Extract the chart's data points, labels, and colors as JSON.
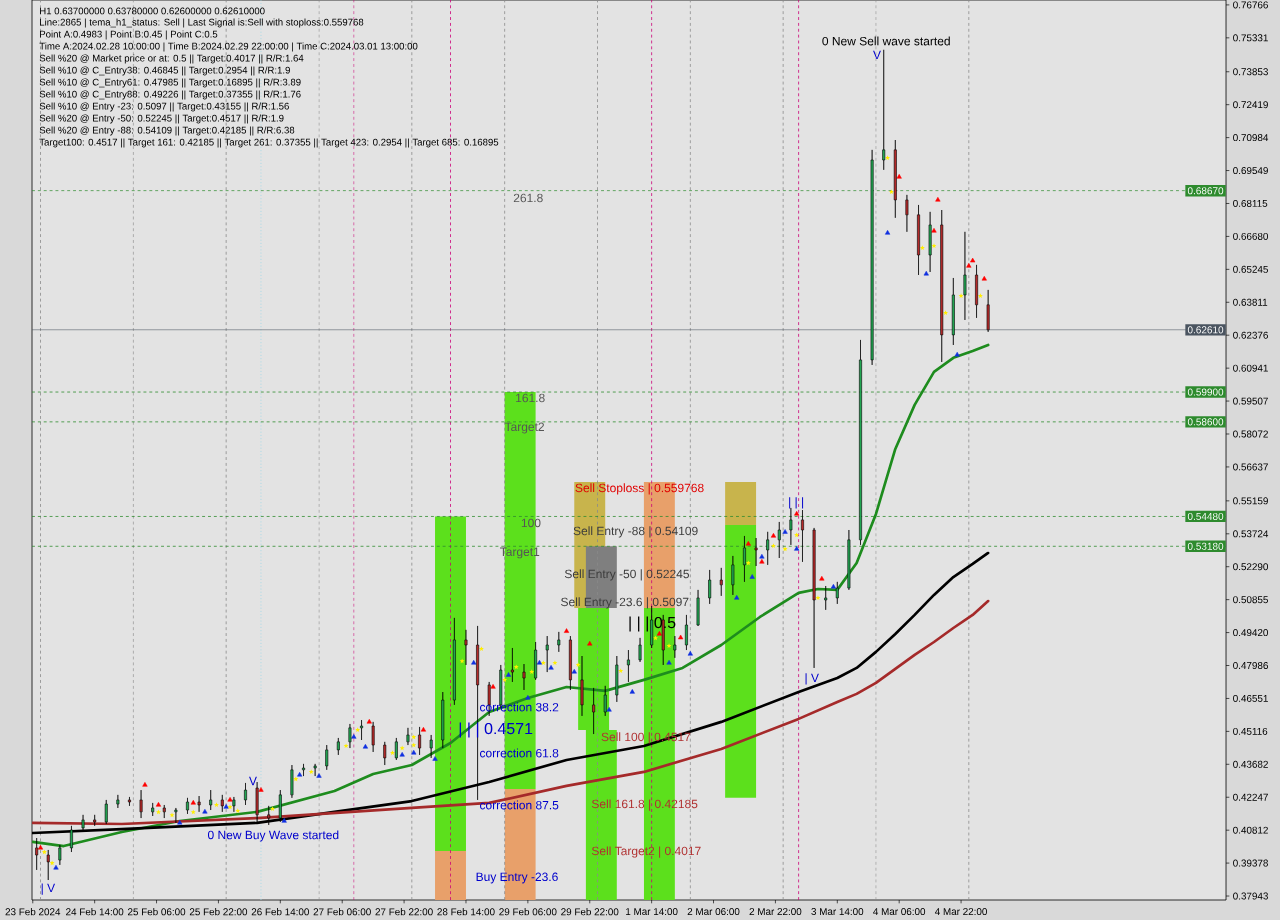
{
  "chart_data": {
    "type": "candlestick",
    "title": "H1 0.63700000 0.63780000 0.62600000 0.62610000",
    "annotations": [
      "Line:2865 | tema_h1_status: Sell | Last Signal is:Sell with stoploss:0.559768",
      "Point A:0.4983 | Point B:0.45 | Point C:0.5",
      "Time A:2024.02.28 10:00:00 | Time B:2024.02.29 22:00:00 | Time C:2024.03.01 13:00:00",
      "Sell %20 @ Market price or at: 0.5 || Target:0.4017 || R/R:1.64",
      "Sell %10 @ C_Entry38: 0.46845 || Target:0.2954 || R/R:1.9",
      "Sell %10 @ C_Entry61: 0.47985 || Target:0.16895 || R/R:3.89",
      "Sell %10 @ C_Entry88: 0.49226 || Target:0.37355 || R/R:1.76",
      "Sell %10 @ Entry -23: 0.5097 || Target:0.43155 || R/R:1.56",
      "Sell %20 @ Entry -50: 0.52245 || Target:0.4517 || R/R:1.9",
      "Sell %20 @ Entry -88: 0.54109 || Target:0.42185 || R/R:6.38",
      "Target100: 0.4517 || Target 161: 0.42185 || Target 261: 0.37355 || Target 423: 0.2954 || Target 685: 0.16895",
      "261.8",
      "161.8",
      "Target2",
      "100",
      "Target1",
      "Sell Stoploss | 0.559768",
      "Sell Entry -88 | 0.54109",
      "Sell Entry -50 | 0.52245",
      "Sell Entry -23.6 | 0.5097",
      "| | | 0.5",
      "| | | 0.4571",
      "correction 38.2",
      "correction 61.8",
      "correction 87.5",
      "Sell 100 | 0.4517",
      "Sell 161.8 | 0.42185",
      "Sell Target2 | 0.4017",
      "Buy Entry -23.6",
      "0 New Buy Wave started",
      "0 New Sell wave started",
      "| V",
      "V",
      "| | |",
      "| V",
      "V"
    ],
    "x": [
      "2024-02-23T23:00",
      "2024-02-24T02:00",
      "2024-02-24T05:00",
      "2024-02-24T08:00",
      "2024-02-24T11:00",
      "2024-02-24T14:00",
      "2024-02-24T17:00",
      "2024-02-24T20:00",
      "2024-02-24T23:00",
      "2024-02-25T02:00",
      "2024-02-25T05:00",
      "2024-02-25T08:00",
      "2024-02-25T11:00",
      "2024-02-25T14:00",
      "2024-02-25T17:00",
      "2024-02-25T20:00",
      "2024-02-25T23:00",
      "2024-02-26T02:00",
      "2024-02-26T05:00",
      "2024-02-26T08:00",
      "2024-02-26T11:00",
      "2024-02-26T14:00",
      "2024-02-26T17:00",
      "2024-02-26T20:00",
      "2024-02-26T23:00",
      "2024-02-27T02:00",
      "2024-02-27T05:00",
      "2024-02-27T08:00",
      "2024-02-27T11:00",
      "2024-02-27T14:00",
      "2024-02-27T17:00",
      "2024-02-27T20:00",
      "2024-02-27T23:00",
      "2024-02-28T02:00",
      "2024-02-28T05:00",
      "2024-02-28T08:00",
      "2024-02-28T11:00",
      "2024-02-28T14:00",
      "2024-02-28T17:00",
      "2024-02-28T20:00",
      "2024-02-28T23:00",
      "2024-02-29T02:00",
      "2024-02-29T05:00",
      "2024-02-29T08:00",
      "2024-02-29T11:00",
      "2024-02-29T14:00",
      "2024-02-29T17:00",
      "2024-02-29T20:00",
      "2024-02-29T23:00",
      "2024-03-01T02:00",
      "2024-03-01T05:00",
      "2024-03-01T08:00",
      "2024-03-01T11:00",
      "2024-03-01T14:00",
      "2024-03-01T17:00",
      "2024-03-01T20:00",
      "2024-03-01T23:00",
      "2024-03-02T02:00",
      "2024-03-02T05:00",
      "2024-03-02T08:00",
      "2024-03-02T11:00",
      "2024-03-02T14:00",
      "2024-03-02T17:00",
      "2024-03-02T20:00",
      "2024-03-02T23:00",
      "2024-03-03T02:00",
      "2024-03-03T05:00",
      "2024-03-03T08:00",
      "2024-03-03T11:00",
      "2024-03-03T14:00",
      "2024-03-03T17:00",
      "2024-03-03T20:00",
      "2024-03-03T23:00",
      "2024-03-04T02:00",
      "2024-03-04T05:00",
      "2024-03-04T08:00",
      "2024-03-04T11:00",
      "2024-03-04T14:00",
      "2024-03-04T17:00",
      "2024-03-04T20:00",
      "2024-03-04T23:00",
      "2024-03-05T02:00",
      "2024-03-05T05:00"
    ],
    "ohlc": [
      [
        0.4004,
        0.4047,
        0.3908,
        0.3973
      ],
      [
        0.3973,
        0.3995,
        0.3864,
        0.3943
      ],
      [
        0.3951,
        0.4017,
        0.393,
        0.4004
      ],
      [
        0.4004,
        0.41,
        0.3986,
        0.4082
      ],
      [
        0.4091,
        0.4148,
        0.4082,
        0.4126
      ],
      [
        0.4126,
        0.4148,
        0.41,
        0.4117
      ],
      [
        0.4117,
        0.4213,
        0.4108,
        0.4195
      ],
      [
        0.4195,
        0.4235,
        0.4178,
        0.4213
      ],
      [
        0.4213,
        0.4226,
        0.4187,
        0.4204
      ],
      [
        0.4213,
        0.4256,
        0.4134,
        0.4161
      ],
      [
        0.4161,
        0.42,
        0.4143,
        0.4178
      ],
      [
        0.4178,
        0.4191,
        0.4134,
        0.4161
      ],
      [
        0.4161,
        0.4178,
        0.4113,
        0.4169
      ],
      [
        0.4169,
        0.4222,
        0.4152,
        0.4204
      ],
      [
        0.4204,
        0.423,
        0.4161,
        0.4191
      ],
      [
        0.4191,
        0.4256,
        0.4169,
        0.4213
      ],
      [
        0.4213,
        0.4235,
        0.4161,
        0.4187
      ],
      [
        0.4187,
        0.4226,
        0.4161,
        0.4213
      ],
      [
        0.4213,
        0.4287,
        0.4191,
        0.4256
      ],
      [
        0.4265,
        0.4291,
        0.4117,
        0.4148
      ],
      [
        0.4148,
        0.4187,
        0.4104,
        0.4134
      ],
      [
        0.4134,
        0.4256,
        0.4117,
        0.4235
      ],
      [
        0.4235,
        0.4365,
        0.4222,
        0.4344
      ],
      [
        0.4344,
        0.437,
        0.4317,
        0.4352
      ],
      [
        0.4352,
        0.437,
        0.4317,
        0.4361
      ],
      [
        0.4361,
        0.4452,
        0.4344,
        0.4431
      ],
      [
        0.4431,
        0.4483,
        0.4409,
        0.4466
      ],
      [
        0.4466,
        0.4544,
        0.4439,
        0.4527
      ],
      [
        0.4527,
        0.4561,
        0.4474,
        0.4535
      ],
      [
        0.4535,
        0.4553,
        0.4422,
        0.4452
      ],
      [
        0.4452,
        0.4466,
        0.4365,
        0.4396
      ],
      [
        0.4396,
        0.4483,
        0.4387,
        0.4466
      ],
      [
        0.4466,
        0.4527,
        0.4452,
        0.4496
      ],
      [
        0.4496,
        0.4531,
        0.4409,
        0.4439
      ],
      [
        0.4439,
        0.4496,
        0.4396,
        0.4474
      ],
      [
        0.4474,
        0.4683,
        0.4439,
        0.4648
      ],
      [
        0.4648,
        0.5006,
        0.4627,
        0.491
      ],
      [
        0.491,
        0.4954,
        0.4801,
        0.4888
      ],
      [
        0.4888,
        0.4971,
        0.4213,
        0.4714
      ],
      [
        0.4714,
        0.4727,
        0.4579,
        0.4627
      ],
      [
        0.4627,
        0.4801,
        0.4614,
        0.4779
      ],
      [
        0.4779,
        0.4875,
        0.4727,
        0.477
      ],
      [
        0.477,
        0.4805,
        0.4692,
        0.4744
      ],
      [
        0.4744,
        0.4901,
        0.4736,
        0.4866
      ],
      [
        0.4866,
        0.4927,
        0.477,
        0.4888
      ],
      [
        0.4888,
        0.4945,
        0.4858,
        0.491
      ],
      [
        0.491,
        0.4927,
        0.4692,
        0.4736
      ],
      [
        0.4736,
        0.484,
        0.4579,
        0.4627
      ],
      [
        0.4627,
        0.4701,
        0.45,
        0.4596
      ],
      [
        0.4596,
        0.471,
        0.4579,
        0.467
      ],
      [
        0.467,
        0.484,
        0.464,
        0.4801
      ],
      [
        0.4801,
        0.4866,
        0.4727,
        0.4823
      ],
      [
        0.4823,
        0.4919,
        0.4814,
        0.4888
      ],
      [
        0.4888,
        0.5058,
        0.4875,
        0.4997
      ],
      [
        0.4997,
        0.5019,
        0.4801,
        0.4866
      ],
      [
        0.4866,
        0.4927,
        0.4832,
        0.4888
      ],
      [
        0.4888,
        0.5019,
        0.4866,
        0.4975
      ],
      [
        0.4975,
        0.5128,
        0.4971,
        0.5093
      ],
      [
        0.5093,
        0.5215,
        0.5067,
        0.5171
      ],
      [
        0.5171,
        0.5224,
        0.5102,
        0.515
      ],
      [
        0.515,
        0.5276,
        0.5106,
        0.5237
      ],
      [
        0.5237,
        0.5363,
        0.5163,
        0.5311
      ],
      [
        0.5311,
        0.5354,
        0.5232,
        0.5302
      ],
      [
        0.5302,
        0.5381,
        0.5237,
        0.5346
      ],
      [
        0.5346,
        0.5424,
        0.5267,
        0.5389
      ],
      [
        0.5389,
        0.5485,
        0.5324,
        0.5433
      ],
      [
        0.5433,
        0.5476,
        0.525,
        0.5389
      ],
      [
        0.5389,
        0.5398,
        0.4788,
        0.5084
      ],
      [
        0.5084,
        0.5145,
        0.5041,
        0.5093
      ],
      [
        0.5093,
        0.5163,
        0.5067,
        0.5136
      ],
      [
        0.5136,
        0.5389,
        0.5128,
        0.5346
      ],
      [
        0.5346,
        0.6217,
        0.5324,
        0.613
      ],
      [
        0.613,
        0.7045,
        0.6108,
        0.7001
      ],
      [
        0.7001,
        0.7481,
        0.6958,
        0.7045
      ],
      [
        0.7045,
        0.7088,
        0.6749,
        0.6827
      ],
      [
        0.6827,
        0.6849,
        0.6688,
        0.6762
      ],
      [
        0.6762,
        0.6805,
        0.65,
        0.6587
      ],
      [
        0.6587,
        0.6775,
        0.6513,
        0.6718
      ],
      [
        0.6718,
        0.6783,
        0.6121,
        0.6239
      ],
      [
        0.6239,
        0.6487,
        0.6195,
        0.6413
      ],
      [
        0.6413,
        0.6688,
        0.6304,
        0.65
      ],
      [
        0.65,
        0.6544,
        0.6313,
        0.637
      ],
      [
        0.637,
        0.6435,
        0.6252,
        0.6261
      ]
    ],
    "colors": [
      "#b52a2a",
      "#b52a2a",
      "#22a652",
      "#22a652",
      "#22a652",
      "#b52a2a",
      "#22a652",
      "#22a652",
      "#b52a2a",
      "#b52a2a",
      "#22a652",
      "#b52a2a",
      "#22a652",
      "#22a652",
      "#b52a2a",
      "#22a652",
      "#b52a2a",
      "#22a652",
      "#22a652",
      "#b52a2a",
      "#b52a2a",
      "#22a652",
      "#22a652",
      "#22a652",
      "#22a652",
      "#22a652",
      "#22a652",
      "#22a652",
      "#22a652",
      "#b52a2a",
      "#b52a2a",
      "#22a652",
      "#22a652",
      "#b52a2a",
      "#22a652",
      "#22a652",
      "#22a652",
      "#b52a2a",
      "#b52a2a",
      "#b52a2a",
      "#22a652",
      "#b52a2a",
      "#b52a2a",
      "#22a652",
      "#22a652",
      "#22a652",
      "#b52a2a",
      "#b52a2a",
      "#b52a2a",
      "#22a652",
      "#22a652",
      "#22a652",
      "#22a652",
      "#22a652",
      "#b52a2a",
      "#22a652",
      "#22a652",
      "#22a652",
      "#22a652",
      "#b52a2a",
      "#22a652",
      "#22a652",
      "#b52a2a",
      "#22a652",
      "#22a652",
      "#22a652",
      "#b52a2a",
      "#b52a2a",
      "#22a652",
      "#22a652",
      "#22a652",
      "#22a652",
      "#22a652",
      "#22a652",
      "#b52a2a",
      "#b52a2a",
      "#b52a2a",
      "#22a652",
      "#b52a2a",
      "#22a652",
      "#22a652",
      "#b52a2a",
      "#b52a2a"
    ],
    "series": [
      {
        "type": "bar",
        "color": "#5ce01c",
        "x": [
          "2024-02-28T10:00",
          "2024-02-29T04:00",
          "2024-02-29T23:00",
          "2024-03-01T01:00",
          "2024-03-01T16:00",
          "2024-03-02T13:00"
        ],
        "base": [
          0.3991,
          0.4261,
          0.4518,
          0.3777,
          0.3777,
          0.4222
        ],
        "values": [
          0.1457,
          0.1729,
          0.0531,
          0.0741,
          0.1272,
          0.1189
        ]
      },
      {
        "type": "bar",
        "color": "#e8a06a",
        "x": [
          "2024-02-28T10:00",
          "2024-02-29T04:00",
          "2024-03-01T16:00"
        ],
        "base": [
          0.3777,
          0.3777,
          0.5049
        ],
        "values": [
          0.0214,
          0.0484,
          0.0549
        ]
      },
      {
        "type": "bar",
        "color": "#c8b44c",
        "x": [
          "2024-02-29T22:00",
          "2024-03-02T13:00"
        ],
        "base": [
          0.5049,
          0.5411
        ],
        "values": [
          0.0549,
          0.0187
        ]
      },
      {
        "type": "bar",
        "color": "#7f7f7f",
        "x": [
          "2024-03-01T01:00"
        ],
        "base": [
          0.5049
        ],
        "values": [
          0.0269
        ]
      },
      {
        "type": "line",
        "color": "#1e8c1e",
        "x": [
          "2024-02-23T22:00",
          "2024-02-24T06:00",
          "2024-02-24T21:00",
          "2024-02-25T12:00",
          "2024-02-26T08:00",
          "2024-02-27T04:00",
          "2024-02-27T14:00",
          "2024-02-28T00:00",
          "2024-02-28T10:00",
          "2024-02-28T20:00",
          "2024-02-29T06:00",
          "2024-02-29T16:00",
          "2024-03-01T02:00",
          "2024-03-01T12:00",
          "2024-03-01T22:00",
          "2024-03-02T08:00",
          "2024-03-02T18:00",
          "2024-03-03T04:00",
          "2024-03-03T09:00",
          "2024-03-03T14:00",
          "2024-03-03T19:00",
          "2024-03-04T00:00",
          "2024-03-04T05:00",
          "2024-03-04T10:00",
          "2024-03-04T15:00",
          "2024-03-04T20:00",
          "2024-03-05T01:00",
          "2024-03-05T05:00"
        ],
        "values": [
          0.403,
          0.4012,
          0.4073,
          0.4121,
          0.4161,
          0.4252,
          0.4326,
          0.4365,
          0.4461,
          0.4596,
          0.4657,
          0.4705,
          0.4688,
          0.4736,
          0.4788,
          0.4888,
          0.501,
          0.5115,
          0.5132,
          0.5128,
          0.5245,
          0.5459,
          0.5742,
          0.5934,
          0.6078,
          0.6139,
          0.6169,
          0.6195
        ]
      },
      {
        "type": "line",
        "color": "#000000",
        "x": [
          "2024-02-23T22:00",
          "2024-02-24T21:00",
          "2024-02-26T08:00",
          "2024-02-27T04:00",
          "2024-02-28T00:00",
          "2024-02-28T20:00",
          "2024-02-29T16:00",
          "2024-03-01T12:00",
          "2024-03-02T08:00",
          "2024-03-03T04:00",
          "2024-03-03T14:00",
          "2024-03-03T19:00",
          "2024-03-04T00:00",
          "2024-03-04T05:00",
          "2024-03-04T10:00",
          "2024-03-04T15:00",
          "2024-03-04T20:00",
          "2024-03-05T01:00",
          "2024-03-05T05:00"
        ],
        "values": [
          0.4069,
          0.4086,
          0.4113,
          0.4161,
          0.4208,
          0.4291,
          0.4387,
          0.4448,
          0.4553,
          0.4683,
          0.4744,
          0.4788,
          0.4858,
          0.4936,
          0.5019,
          0.5106,
          0.5184,
          0.5241,
          0.5289
        ]
      },
      {
        "type": "line",
        "color": "#a52a2a",
        "x": [
          "2024-02-23T22:00",
          "2024-02-24T21:00",
          "2024-02-26T08:00",
          "2024-02-27T04:00",
          "2024-02-28T00:00",
          "2024-02-28T20:00",
          "2024-02-29T16:00",
          "2024-03-01T12:00",
          "2024-03-02T08:00",
          "2024-03-03T04:00",
          "2024-03-03T14:00",
          "2024-03-03T19:00",
          "2024-03-04T00:00",
          "2024-03-04T05:00",
          "2024-03-04T10:00",
          "2024-03-04T15:00",
          "2024-03-04T20:00",
          "2024-03-05T01:00",
          "2024-03-05T05:00"
        ],
        "values": [
          0.4113,
          0.4108,
          0.4134,
          0.4156,
          0.4178,
          0.42,
          0.4274,
          0.4335,
          0.4435,
          0.4566,
          0.464,
          0.4675,
          0.4723,
          0.4784,
          0.4845,
          0.4901,
          0.4962,
          0.5019,
          0.508
        ]
      },
      {
        "type": "scatter",
        "color": "#ff0000",
        "marker": "triangle",
        "x": [
          "2024-02-24T00:00",
          "2024-02-25T03:00",
          "2024-02-25T06:30",
          "2024-02-25T15:30",
          "2024-02-26T01:00",
          "2024-02-26T09:00",
          "2024-02-27T13:00",
          "2024-02-28T03:00",
          "2024-02-28T21:00",
          "2024-02-29T16:00",
          "2024-02-29T22:00",
          "2024-03-01T16:00",
          "2024-03-01T21:30",
          "2024-03-02T15:00",
          "2024-03-02T18:30",
          "2024-03-02T21:30",
          "2024-03-03T03:30",
          "2024-03-03T10:00",
          "2024-03-04T06:00",
          "2024-03-04T15:00",
          "2024-03-04T16:00",
          "2024-03-05T00:00",
          "2024-03-05T01:00",
          "2024-03-05T04:00"
        ],
        "values": [
          0.4004,
          0.4278,
          0.4191,
          0.42,
          0.4213,
          0.4256,
          0.4553,
          0.4518,
          0.4705,
          0.4948,
          0.4893,
          0.4936,
          0.492,
          0.5328,
          0.525,
          0.5363,
          0.5459,
          0.5176,
          0.6927,
          0.6692,
          0.6827,
          0.6539,
          0.6562,
          0.6483
        ]
      },
      {
        "type": "scatter",
        "color": "#1030e0",
        "marker": "triangle",
        "x": [
          "2024-02-24T04:00",
          "2024-02-25T12:00",
          "2024-02-25T18:30",
          "2024-02-26T00:00",
          "2024-02-26T15:00",
          "2024-02-26T19:00",
          "2024-02-27T00:00",
          "2024-02-27T09:00",
          "2024-02-27T12:00",
          "2024-02-27T21:30",
          "2024-02-28T00:30",
          "2024-02-28T06:00",
          "2024-02-28T16:00",
          "2024-02-29T01:00",
          "2024-02-29T06:00",
          "2024-02-29T09:00",
          "2024-02-29T12:00",
          "2024-02-29T18:00",
          "2024-03-01T03:00",
          "2024-03-01T09:00",
          "2024-03-01T18:30",
          "2024-03-02T00:00",
          "2024-03-02T12:00",
          "2024-03-02T16:00",
          "2024-03-02T18:30",
          "2024-03-03T00:30",
          "2024-03-03T03:30",
          "2024-03-03T13:00",
          "2024-03-04T03:00",
          "2024-03-04T13:00",
          "2024-03-04T21:00"
        ],
        "values": [
          0.3917,
          0.4113,
          0.4161,
          0.4182,
          0.4121,
          0.4322,
          0.4317,
          0.4487,
          0.4444,
          0.4409,
          0.4418,
          0.4391,
          0.481,
          0.4757,
          0.4657,
          0.481,
          0.4788,
          0.4771,
          0.4605,
          0.4683,
          0.481,
          0.4849,
          0.5093,
          0.5184,
          0.5272,
          0.538,
          0.5306,
          0.5141,
          0.6683,
          0.6505,
          0.6152
        ]
      },
      {
        "type": "scatter",
        "color": "#ffee00",
        "marker": "star",
        "x": [
          "2024-02-24T01:00",
          "2024-02-24T03:00",
          "2024-02-25T06:30",
          "2024-02-25T10:00",
          "2024-02-25T15:30",
          "2024-02-25T21:30",
          "2024-02-26T01:00",
          "2024-02-26T03:00",
          "2024-02-26T12:00",
          "2024-02-26T18:00",
          "2024-02-26T22:00",
          "2024-02-27T07:00",
          "2024-02-27T10:00",
          "2024-02-27T19:00",
          "2024-02-27T21:30",
          "2024-02-28T00:30",
          "2024-02-28T00:30",
          "2024-02-28T13:00",
          "2024-02-28T18:00",
          "2024-02-29T00:00",
          "2024-02-29T03:00",
          "2024-02-29T07:00",
          "2024-02-29T10:00",
          "2024-02-29T13:00",
          "2024-02-29T19:00",
          "2024-03-01T06:00",
          "2024-03-01T15:00",
          "2024-03-01T18:30",
          "2024-03-02T15:00",
          "2024-03-02T21:30",
          "2024-03-03T00:30",
          "2024-03-03T03:30",
          "2024-03-03T09:00",
          "2024-03-04T03:00",
          "2024-03-04T04:00",
          "2024-03-04T12:00",
          "2024-03-04T15:00",
          "2024-03-04T18:00",
          "2024-03-04T22:00",
          "2024-03-05T03:00"
        ],
        "values": [
          0.3986,
          0.3938,
          0.416,
          0.4147,
          0.416,
          0.4191,
          0.4182,
          0.4165,
          0.4174,
          0.4304,
          0.4335,
          0.4448,
          0.4518,
          0.4418,
          0.4439,
          0.4487,
          0.4452,
          0.4818,
          0.4871,
          0.4736,
          0.4792,
          0.4771,
          0.481,
          0.481,
          0.4801,
          0.4775,
          0.4918,
          0.4884,
          0.5245,
          0.532,
          0.5306,
          0.5367,
          0.5093,
          0.701,
          0.6862,
          0.6618,
          0.6627,
          0.6335,
          0.6409,
          0.6409
        ]
      }
    ],
    "xlim": [
      "2024-02-23T21:48",
      "2024-03-07T18:30"
    ],
    "ylim": [
      0.3777,
      0.7698
    ],
    "xticks": [
      {
        "value": "2024-02-23T22:00",
        "label": "23 Feb 2024"
      },
      {
        "value": "2024-02-24T14:00",
        "label": "24 Feb 14:00"
      },
      {
        "value": "2024-02-25T06:00",
        "label": "25 Feb 06:00"
      },
      {
        "value": "2024-02-25T22:00",
        "label": "25 Feb 22:00"
      },
      {
        "value": "2024-02-26T14:00",
        "label": "26 Feb 14:00"
      },
      {
        "value": "2024-02-27T06:00",
        "label": "27 Feb 06:00"
      },
      {
        "value": "2024-02-27T22:00",
        "label": "27 Feb 22:00"
      },
      {
        "value": "2024-02-28T14:00",
        "label": "28 Feb 14:00"
      },
      {
        "value": "2024-02-29T06:00",
        "label": "29 Feb 06:00"
      },
      {
        "value": "2024-02-29T22:00",
        "label": "29 Feb 22:00"
      },
      {
        "value": "2024-03-01T14:00",
        "label": "1 Mar 14:00"
      },
      {
        "value": "2024-03-02T06:00",
        "label": "2 Mar 06:00"
      },
      {
        "value": "2024-03-02T22:00",
        "label": "2 Mar 22:00"
      },
      {
        "value": "2024-03-03T14:00",
        "label": "3 Mar 14:00"
      },
      {
        "value": "2024-03-04T06:00",
        "label": "4 Mar 06:00"
      },
      {
        "value": "2024-03-04T22:00",
        "label": "4 Mar 22:00"
      }
    ],
    "yticks": [
      0.37943,
      0.39378,
      0.40812,
      0.42247,
      0.43682,
      0.45116,
      0.46551,
      0.47986,
      {
        "value": 0.4942,
        "label": "0.49420"
      },
      0.50855,
      {
        "value": 0.5229,
        "label": "0.52290"
      },
      0.53724,
      0.55159,
      0.56637,
      0.58072,
      0.59507,
      0.60941,
      0.62376,
      0.63811,
      0.65245,
      {
        "value": 0.6668,
        "label": "0.66680"
      },
      0.68115,
      0.69549,
      0.70984,
      0.72419,
      0.73853,
      0.75331,
      0.76766
    ],
    "ref_lines": [
      {
        "axis": "x",
        "value": "2024-02-24T00:00",
        "color": "#8a8a8a",
        "line_style": "dashed"
      },
      {
        "axis": "x",
        "value": "2024-02-25T00:00",
        "color": "#8a8a8a",
        "line_style": "dashed"
      },
      {
        "axis": "x",
        "value": "2024-02-26T00:00",
        "color": "#8a8a8a",
        "line_style": "dashed"
      },
      {
        "axis": "x",
        "value": "2024-02-27T00:00",
        "color": "#8a8a8a",
        "line_style": "dashed"
      },
      {
        "axis": "x",
        "value": "2024-02-28T00:00",
        "color": "#8a8a8a",
        "line_style": "dashed"
      },
      {
        "axis": "x",
        "value": "2024-02-29T00:00",
        "color": "#8a8a8a",
        "line_style": "dashed"
      },
      {
        "axis": "x",
        "value": "2024-03-01T00:00",
        "color": "#8a8a8a",
        "line_style": "dashed"
      },
      {
        "axis": "x",
        "value": "2024-03-02T00:00",
        "color": "#8a8a8a",
        "line_style": "dashed"
      },
      {
        "axis": "x",
        "value": "2024-03-03T00:00",
        "color": "#8a8a8a",
        "line_style": "dashed"
      },
      {
        "axis": "x",
        "value": "2024-03-04T00:00",
        "color": "#8a8a8a",
        "line_style": "dashed"
      },
      {
        "axis": "x",
        "value": "2024-03-05T00:00",
        "color": "#8a8a8a",
        "line_style": "dashed"
      },
      {
        "axis": "x",
        "value": "2024-02-27T09:00",
        "color": "#cc0077",
        "line_style": "dashed"
      },
      {
        "axis": "x",
        "value": "2024-02-28T10:00",
        "color": "#cc0077",
        "line_style": "dashed"
      },
      {
        "axis": "x",
        "value": "2024-03-01T14:00",
        "color": "#cc0077",
        "line_style": "dashed"
      },
      {
        "axis": "x",
        "value": "2024-03-03T04:00",
        "color": "#cc0077",
        "line_style": "dashed"
      },
      {
        "axis": "x",
        "value": "2024-02-26T09:00",
        "color": "#9fd8e8",
        "line_style": "dotted"
      },
      {
        "axis": "y",
        "value": 0.6867,
        "label": "0.68670",
        "color": "#2e8b2e",
        "line_style": "dashed"
      },
      {
        "axis": "y",
        "value": 0.599,
        "label": "0.59900",
        "color": "#2e8b2e",
        "line_style": "dashed"
      },
      {
        "axis": "y",
        "value": 0.586,
        "label": "0.58600",
        "color": "#2e8b2e",
        "line_style": "dashed"
      },
      {
        "axis": "y",
        "value": 0.5448,
        "label": "0.54480",
        "color": "#2e8b2e",
        "line_style": "dashed"
      },
      {
        "axis": "y",
        "value": 0.5318,
        "label": "0.53180",
        "color": "#2e8b2e",
        "line_style": "dashed"
      },
      {
        "axis": "y",
        "value": 0.6261,
        "label": "0.62610",
        "color": "#4a5460",
        "line_style": "solid"
      }
    ]
  }
}
